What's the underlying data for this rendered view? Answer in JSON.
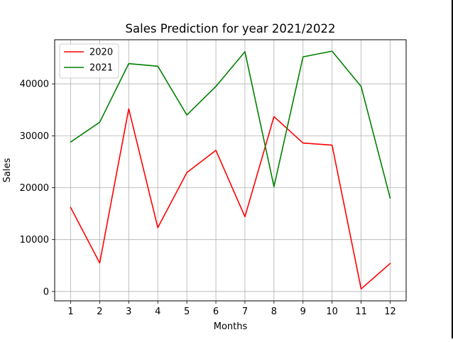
{
  "chart_data": {
    "type": "line",
    "title": "Sales Prediction for year 2021/2022",
    "xlabel": "Months",
    "ylabel": "Sales",
    "categories": [
      "1",
      "2",
      "3",
      "4",
      "5",
      "6",
      "7",
      "8",
      "9",
      "10",
      "11",
      "12"
    ],
    "x": [
      1,
      2,
      3,
      4,
      5,
      6,
      7,
      8,
      9,
      10,
      11,
      12
    ],
    "xlim": [
      0.45,
      12.55
    ],
    "ylim": [
      -1800,
      48500
    ],
    "yticks": [
      0,
      10000,
      20000,
      30000,
      40000
    ],
    "ytick_labels": [
      "0",
      "10000",
      "20000",
      "30000",
      "40000"
    ],
    "grid": true,
    "legend": "upper-left",
    "series": [
      {
        "name": "2020",
        "color": "#ff0000",
        "values": [
          16200,
          5500,
          35200,
          12300,
          22900,
          27200,
          14400,
          33700,
          28600,
          28200,
          500,
          5400
        ]
      },
      {
        "name": "2021",
        "color": "#008000",
        "values": [
          28800,
          32600,
          43900,
          43400,
          34000,
          39500,
          46200,
          20200,
          45200,
          46300,
          39500,
          18000
        ]
      }
    ]
  }
}
